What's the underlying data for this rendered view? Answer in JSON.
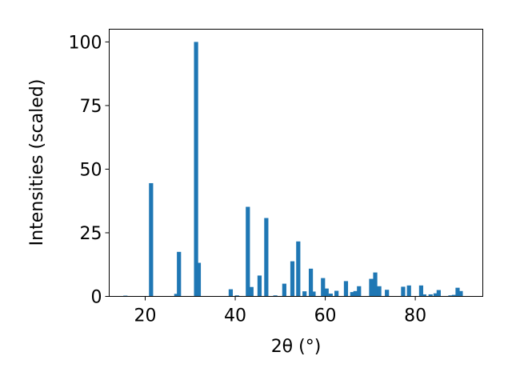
{
  "chart_data": {
    "type": "bar",
    "xlabel": "2θ (°)",
    "ylabel": "Intensities (scaled)",
    "xlim": [
      12,
      95
    ],
    "ylim": [
      0,
      105
    ],
    "xticks": [
      20,
      40,
      60,
      80
    ],
    "yticks": [
      0,
      25,
      50,
      75,
      100
    ],
    "grid": false,
    "bar_color": "#1f77b4",
    "x": [
      15.6,
      21.3,
      26.9,
      27.5,
      31.3,
      31.9,
      39.0,
      40.4,
      42.8,
      43.6,
      45.4,
      46.9,
      48.9,
      50.9,
      52.7,
      54.0,
      55.4,
      56.8,
      57.4,
      59.5,
      60.3,
      61.2,
      62.5,
      64.6,
      66.0,
      66.7,
      67.5,
      70.2,
      71.1,
      72.0,
      73.7,
      77.3,
      78.6,
      81.3,
      82.0,
      83.4,
      84.5,
      85.2,
      87.8,
      88.6,
      89.4,
      90.1
    ],
    "values": [
      0.3,
      44.5,
      1.0,
      17.5,
      100,
      13.2,
      2.8,
      0.4,
      35.2,
      3.7,
      8.2,
      30.8,
      0.4,
      5.0,
      13.8,
      21.6,
      2.0,
      10.9,
      1.9,
      7.2,
      3.1,
      1.1,
      2.2,
      6.0,
      1.7,
      2.1,
      4.0,
      6.9,
      9.4,
      4.0,
      2.6,
      3.8,
      4.3,
      4.3,
      0.8,
      0.8,
      1.2,
      2.5,
      0.4,
      0.6,
      3.4,
      2.1
    ],
    "tick_labels_x": [
      "20",
      "40",
      "60",
      "80"
    ],
    "tick_labels_y": [
      "0",
      "25",
      "50",
      "75",
      "100"
    ]
  }
}
